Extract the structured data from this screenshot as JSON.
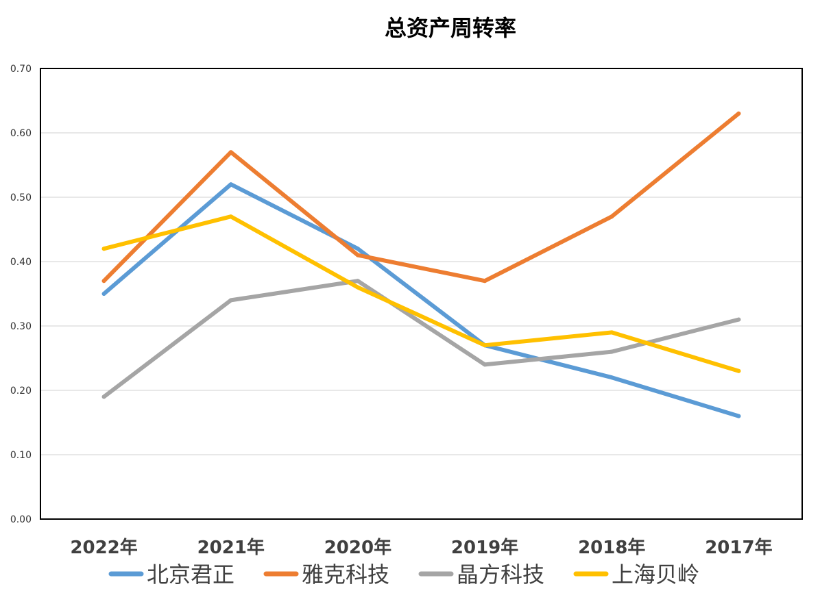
{
  "chart_data": {
    "type": "line",
    "title": "总资产周转率",
    "categories": [
      "2022年",
      "2021年",
      "2020年",
      "2019年",
      "2018年",
      "2017年"
    ],
    "ylim": [
      0,
      0.7
    ],
    "yticks": [
      "0.00",
      "0.10",
      "0.20",
      "0.30",
      "0.40",
      "0.50",
      "0.60",
      "0.70"
    ],
    "grid": true,
    "legend_position": "bottom",
    "series": [
      {
        "name": "北京君正",
        "color": "#5B9BD5",
        "values": [
          0.35,
          0.52,
          0.42,
          0.27,
          0.22,
          0.16
        ]
      },
      {
        "name": "雅克科技",
        "color": "#ED7D31",
        "values": [
          0.37,
          0.57,
          0.41,
          0.37,
          0.47,
          0.63
        ]
      },
      {
        "name": "晶方科技",
        "color": "#A5A5A5",
        "values": [
          0.19,
          0.34,
          0.37,
          0.24,
          0.26,
          0.31
        ]
      },
      {
        "name": "上海贝岭",
        "color": "#FFC000",
        "values": [
          0.42,
          0.47,
          0.36,
          0.27,
          0.29,
          0.23
        ]
      }
    ]
  }
}
